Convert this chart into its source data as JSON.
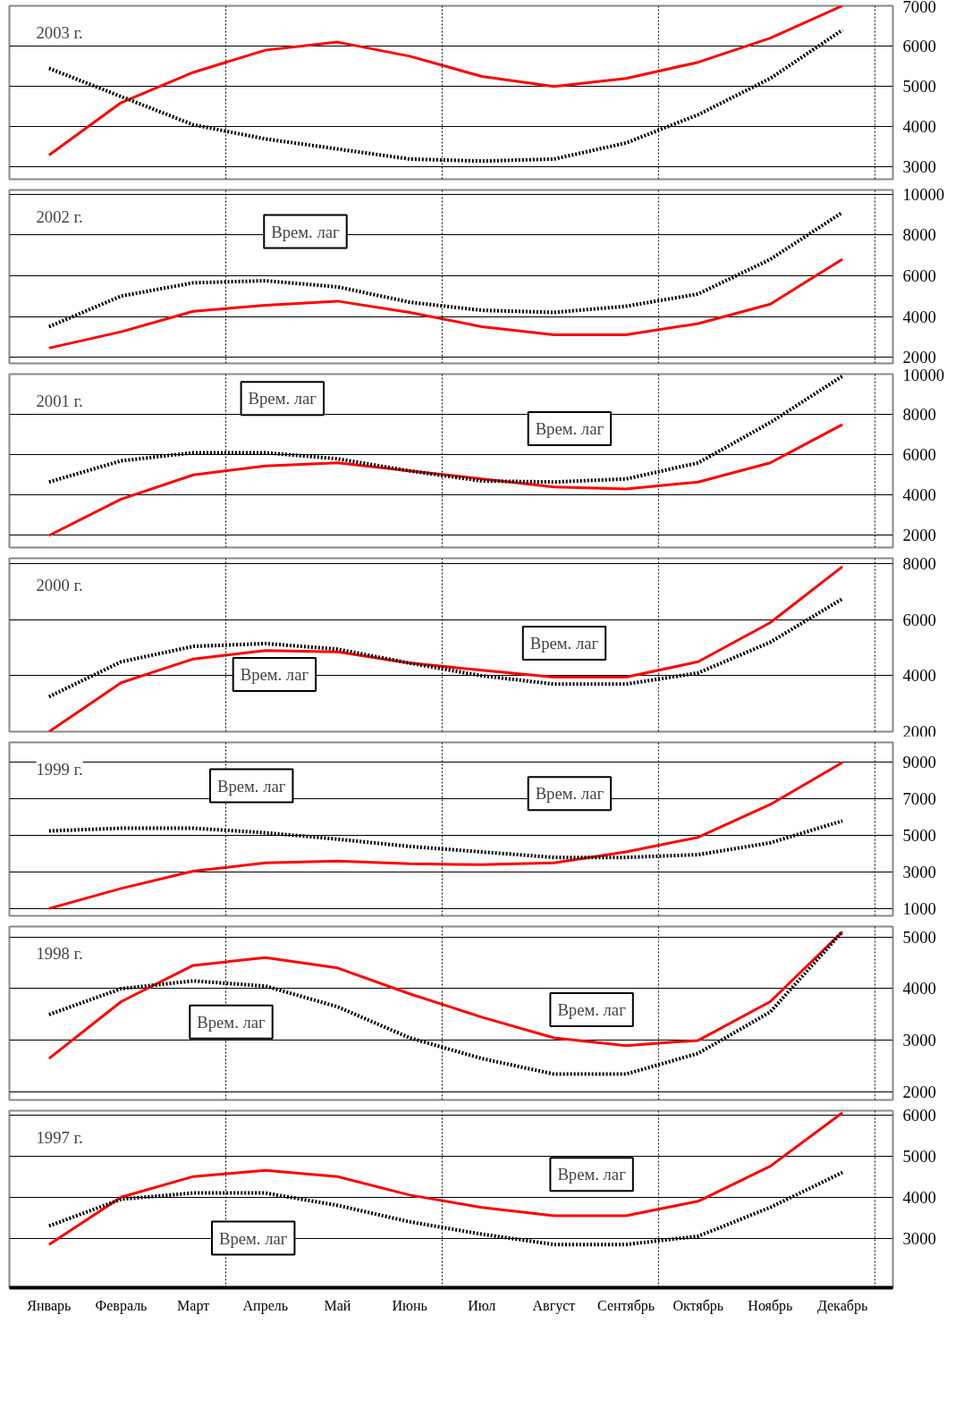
{
  "chart_data": [
    {
      "type": "line",
      "title": "2003 г.",
      "ylim": [
        2700,
        7000
      ],
      "yticks": [
        3000,
        4000,
        5000,
        6000,
        7000
      ],
      "tick_labels": "y",
      "grid": "y",
      "categories": [
        null,
        null,
        null,
        null,
        null,
        null,
        null,
        null,
        null,
        null,
        null,
        null
      ],
      "series": [
        {
          "color": "#ff0000",
          "line_style": "solid",
          "values": [
            3300,
            4600,
            5350,
            5900,
            6100,
            5750,
            5250,
            5000,
            5200,
            5600,
            6200,
            7000
          ]
        },
        {
          "color": "#000000",
          "line_style": "dotted",
          "values": [
            5450,
            4750,
            4050,
            3700,
            3450,
            3200,
            3150,
            3200,
            3600,
            4300,
            5200,
            6400
          ]
        }
      ]
    },
    {
      "type": "line",
      "title": "2002 г.",
      "ylim": [
        1700,
        10200
      ],
      "yticks": [
        2000,
        4000,
        6000,
        8000,
        10000
      ],
      "tick_labels": "y",
      "grid": "y",
      "categories": [
        null,
        null,
        null,
        null,
        null,
        null,
        null,
        null,
        null,
        null,
        null,
        null
      ],
      "annotations": [
        "Врем. лаг"
      ],
      "series": [
        {
          "color": "#ff0000",
          "line_style": "solid",
          "values": [
            2450,
            3250,
            4250,
            4550,
            4750,
            4200,
            3500,
            3100,
            3100,
            3650,
            4600,
            6800
          ]
        },
        {
          "color": "#000000",
          "line_style": "dotted",
          "values": [
            3500,
            5000,
            5650,
            5750,
            5450,
            4700,
            4300,
            4200,
            4500,
            5100,
            6800,
            9100
          ]
        }
      ]
    },
    {
      "type": "line",
      "title": "2001 г.",
      "ylim": [
        1400,
        10000
      ],
      "yticks": [
        2000,
        4000,
        6000,
        8000,
        10000
      ],
      "tick_labels": "y",
      "grid": "y",
      "categories": [
        null,
        null,
        null,
        null,
        null,
        null,
        null,
        null,
        null,
        null,
        null,
        null
      ],
      "annotations": [
        "Врем. лаг",
        "Врем. лаг"
      ],
      "series": [
        {
          "color": "#ff0000",
          "line_style": "solid",
          "values": [
            2000,
            3800,
            5000,
            5450,
            5600,
            5200,
            4800,
            4400,
            4300,
            4650,
            5600,
            7500
          ]
        },
        {
          "color": "#000000",
          "line_style": "dotted",
          "values": [
            4650,
            5700,
            6100,
            6100,
            5800,
            5200,
            4700,
            4650,
            4800,
            5600,
            7600,
            9900
          ]
        }
      ]
    },
    {
      "type": "line",
      "title": "2000 г.",
      "ylim": [
        2000,
        8200
      ],
      "yticks": [
        2000,
        4000,
        6000,
        8000
      ],
      "tick_labels": "y",
      "grid": "y",
      "categories": [
        null,
        null,
        null,
        null,
        null,
        null,
        null,
        null,
        null,
        null,
        null,
        null
      ],
      "annotations": [
        "Врем. лаг",
        "Врем. лаг"
      ],
      "series": [
        {
          "color": "#ff0000",
          "line_style": "solid",
          "values": [
            2000,
            3750,
            4600,
            4900,
            4850,
            4450,
            4200,
            3950,
            3950,
            4500,
            5900,
            7900
          ]
        },
        {
          "color": "#000000",
          "line_style": "dotted",
          "values": [
            3250,
            4500,
            5050,
            5150,
            4950,
            4450,
            4000,
            3700,
            3700,
            4100,
            5200,
            6750
          ]
        }
      ]
    },
    {
      "type": "line",
      "title": "1999 г.",
      "ylim": [
        600,
        10100
      ],
      "yticks": [
        1000,
        3000,
        5000,
        7000,
        9000
      ],
      "tick_labels": "y",
      "grid": "y",
      "categories": [
        null,
        null,
        null,
        null,
        null,
        null,
        null,
        null,
        null,
        null,
        null,
        null
      ],
      "annotations": [
        "Врем. лаг",
        "Врем. лаг"
      ],
      "series": [
        {
          "color": "#ff0000",
          "line_style": "solid",
          "values": [
            1000,
            2100,
            3050,
            3500,
            3600,
            3450,
            3400,
            3500,
            4100,
            4900,
            6700,
            9000
          ]
        },
        {
          "color": "#000000",
          "line_style": "dotted",
          "values": [
            5250,
            5400,
            5400,
            5150,
            4800,
            4400,
            4100,
            3800,
            3800,
            3950,
            4600,
            5800
          ]
        }
      ]
    },
    {
      "type": "line",
      "title": "1998 г.",
      "ylim": [
        1850,
        5200
      ],
      "yticks": [
        2000,
        3000,
        4000,
        5000
      ],
      "tick_labels": "y",
      "grid": "y",
      "categories": [
        null,
        null,
        null,
        null,
        null,
        null,
        null,
        null,
        null,
        null,
        null,
        null
      ],
      "annotations": [
        "Врем. лаг",
        "Врем. лаг"
      ],
      "series": [
        {
          "color": "#ff0000",
          "line_style": "solid",
          "values": [
            2650,
            3750,
            4450,
            4600,
            4400,
            3900,
            3450,
            3050,
            2900,
            3000,
            3750,
            5100
          ]
        },
        {
          "color": "#000000",
          "line_style": "dotted",
          "values": [
            3500,
            4000,
            4150,
            4050,
            3650,
            3050,
            2650,
            2350,
            2350,
            2750,
            3550,
            5100
          ]
        }
      ]
    },
    {
      "type": "line",
      "title": "1997 г.",
      "ylim": [
        1800,
        6100
      ],
      "yticks": [
        3000,
        4000,
        5000,
        6000
      ],
      "grid": "y",
      "categories": [
        "Январь",
        "Февраль",
        "Март",
        "Апрель",
        "Май",
        "Июнь",
        "Июл",
        "Август",
        "Сентябрь",
        "Октябрь",
        "Ноябрь",
        "Декабрь"
      ],
      "annotations": [
        "Врем. лаг",
        "Врем. лаг"
      ],
      "series": [
        {
          "color": "#ff0000",
          "line_style": "solid",
          "values": [
            2850,
            4000,
            4500,
            4650,
            4500,
            4050,
            3750,
            3550,
            3550,
            3900,
            4750,
            6050
          ]
        },
        {
          "color": "#000000",
          "line_style": "dotted",
          "values": [
            3300,
            3950,
            4100,
            4100,
            3800,
            3400,
            3100,
            2850,
            2850,
            3050,
            3750,
            4600
          ]
        }
      ]
    }
  ]
}
